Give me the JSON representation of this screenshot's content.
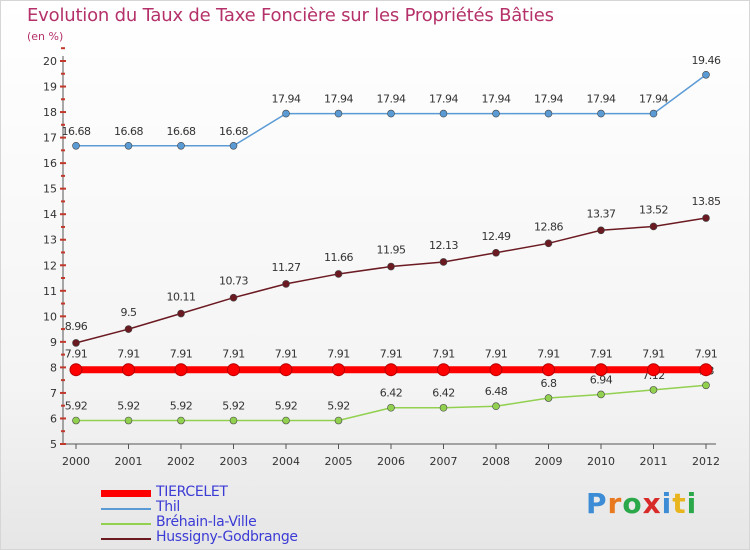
{
  "chart_data": {
    "type": "line",
    "title": "Evolution du Taux de Taxe Foncière sur les Propriétés Bâties",
    "subtitle": "(en %)",
    "x": [
      "2000",
      "2001",
      "2002",
      "2003",
      "2004",
      "2005",
      "2006",
      "2007",
      "2008",
      "2009",
      "2010",
      "2011",
      "2012"
    ],
    "ylim": [
      5,
      20
    ],
    "yticks": [
      5,
      6,
      7,
      8,
      9,
      10,
      11,
      12,
      13,
      14,
      15,
      16,
      17,
      18,
      19,
      20
    ],
    "grid": false,
    "legend_position": "bottom-left",
    "series": [
      {
        "name": "TIERCELET",
        "color": "#ff0000",
        "values": [
          7.91,
          7.91,
          7.91,
          7.91,
          7.91,
          7.91,
          7.91,
          7.91,
          7.91,
          7.91,
          7.91,
          7.91,
          7.91
        ],
        "labels": [
          "7.91",
          "7.91",
          "7.91",
          "7.91",
          "7.91",
          "7.91",
          "7.91",
          "7.91",
          "7.91",
          "7.91",
          "7.91",
          "7.91",
          "7.91"
        ]
      },
      {
        "name": "Thil",
        "color": "#5b9bd5",
        "values": [
          16.68,
          16.68,
          16.68,
          16.68,
          17.94,
          17.94,
          17.94,
          17.94,
          17.94,
          17.94,
          17.94,
          17.94,
          19.46
        ],
        "labels": [
          "16.68",
          "16.68",
          "16.68",
          "16.68",
          "17.94",
          "17.94",
          "17.94",
          "17.94",
          "17.94",
          "17.94",
          "17.94",
          "17.94",
          "19.46"
        ]
      },
      {
        "name": "Bréhain-la-Ville",
        "color": "#92d050",
        "values": [
          5.92,
          5.92,
          5.92,
          5.92,
          5.92,
          5.92,
          6.42,
          6.42,
          6.48,
          6.8,
          6.94,
          7.12,
          7.3
        ],
        "labels": [
          "5.92",
          "5.92",
          "5.92",
          "5.92",
          "5.92",
          "5.92",
          "6.42",
          "6.42",
          "6.48",
          "6.8",
          "6.94",
          "7.12",
          "7.3"
        ]
      },
      {
        "name": "Hussigny-Godbrange",
        "color": "#6b1a22",
        "values": [
          8.96,
          9.5,
          10.11,
          10.73,
          11.27,
          11.66,
          11.95,
          12.13,
          12.49,
          12.86,
          13.37,
          13.52,
          13.85
        ],
        "labels": [
          "8.96",
          "9.5",
          "10.11",
          "10.73",
          "11.27",
          "11.66",
          "11.95",
          "12.13",
          "12.49",
          "12.86",
          "13.37",
          "13.52",
          "13.85"
        ]
      }
    ]
  },
  "logo": {
    "letters": [
      "P",
      "r",
      "o",
      "x",
      "i",
      "t",
      "i"
    ],
    "colors": [
      "#3c8dd6",
      "#e8791f",
      "#2aa84a",
      "#d92a2a",
      "#3c8dd6",
      "#e8b51f",
      "#2aa84a"
    ]
  }
}
